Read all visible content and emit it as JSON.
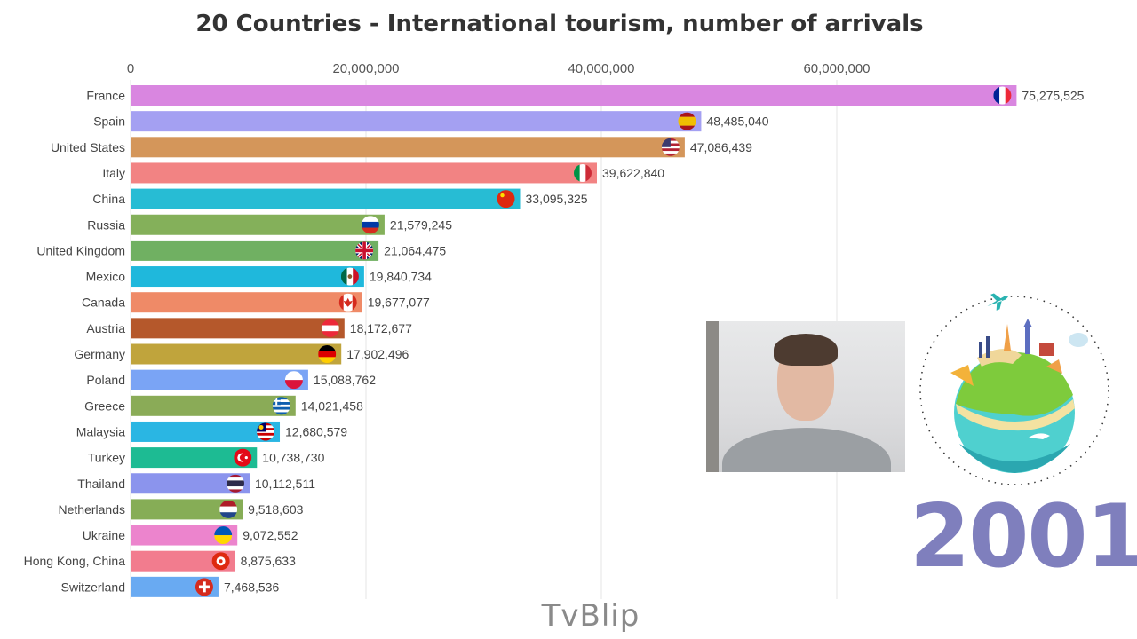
{
  "chart_data": {
    "type": "bar",
    "orientation": "horizontal",
    "title": "20 Countries - International tourism, number of arrivals",
    "xlabel": "",
    "ylabel": "",
    "xlim": [
      0,
      80000000
    ],
    "x_ticks": [
      0,
      20000000,
      40000000,
      60000000
    ],
    "x_tick_labels": [
      "0",
      "20,000,000",
      "40,000,000",
      "60,000,000"
    ],
    "grid": true,
    "categories": [
      "France",
      "Spain",
      "United States",
      "Italy",
      "China",
      "Russia",
      "United Kingdom",
      "Mexico",
      "Canada",
      "Austria",
      "Germany",
      "Poland",
      "Greece",
      "Malaysia",
      "Turkey",
      "Thailand",
      "Netherlands",
      "Ukraine",
      "Hong Kong, China",
      "Switzerland"
    ],
    "values": [
      75275525,
      48485040,
      47086439,
      39622840,
      33095325,
      21579245,
      21064475,
      19840734,
      19677077,
      18172677,
      17902496,
      15088762,
      14021458,
      12680579,
      10738730,
      10112511,
      9518603,
      9072552,
      8875633,
      7468536
    ],
    "value_labels": [
      "75,275,525",
      "48,485,040",
      "47,086,439",
      "39,622,840",
      "33,095,325",
      "21,579,245",
      "21,064,475",
      "19,840,734",
      "19,677,077",
      "18,172,677",
      "17,902,496",
      "15,088,762",
      "14,021,458",
      "12,680,579",
      "10,738,730",
      "10,112,511",
      "9,518,603",
      "9,072,552",
      "8,875,633",
      "7,468,536"
    ],
    "bar_colors": [
      "#d986e0",
      "#a4a0f2",
      "#d4965a",
      "#f28383",
      "#27bcd4",
      "#84b05a",
      "#70b062",
      "#1fb8dc",
      "#ef8a67",
      "#b5582b",
      "#c0a43c",
      "#7aa4f5",
      "#8aab57",
      "#2ab6e3",
      "#1dbb93",
      "#8b94ed",
      "#86ad56",
      "#ec84cd",
      "#f27c8e",
      "#69aaf2"
    ],
    "flags": [
      "france-flag-icon",
      "spain-flag-icon",
      "usa-flag-icon",
      "italy-flag-icon",
      "china-flag-icon",
      "russia-flag-icon",
      "uk-flag-icon",
      "mexico-flag-icon",
      "canada-flag-icon",
      "austria-flag-icon",
      "germany-flag-icon",
      "poland-flag-icon",
      "greece-flag-icon",
      "malaysia-flag-icon",
      "turkey-flag-icon",
      "thailand-flag-icon",
      "netherlands-flag-icon",
      "ukraine-flag-icon",
      "hongkong-flag-icon",
      "switzerland-flag-icon"
    ]
  },
  "year": "2001",
  "watermark": "TvBlip",
  "webcam_overlay": "webcam-person-image",
  "illustration": "travel-globe-icon"
}
